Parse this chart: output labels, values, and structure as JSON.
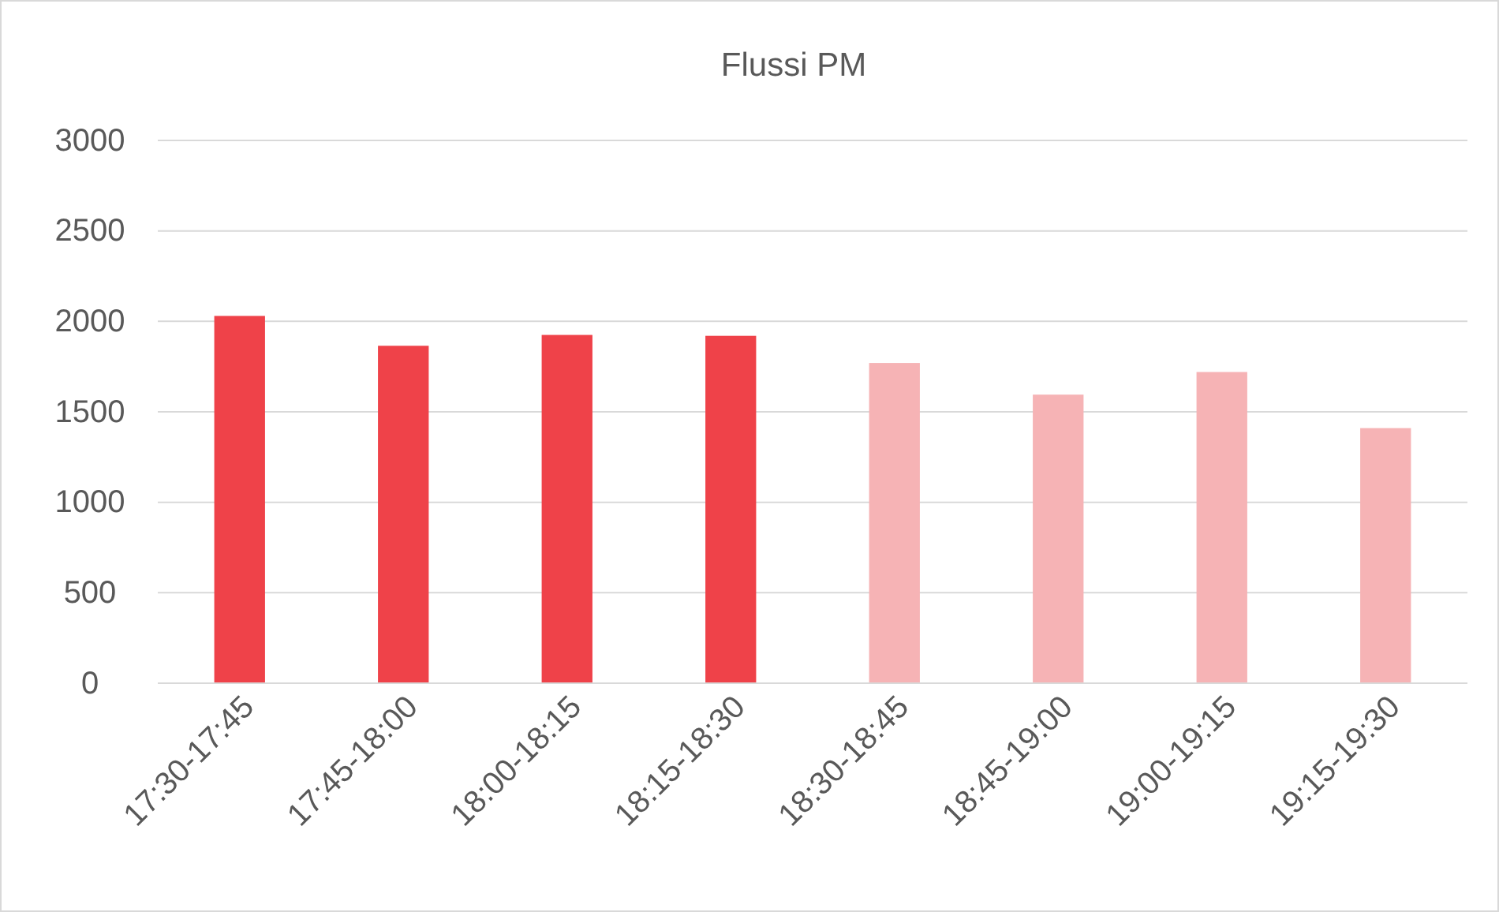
{
  "chart_data": {
    "type": "bar",
    "title": "Flussi PM",
    "categories": [
      "17:30-17:45",
      "17:45-18:00",
      "18:00-18:15",
      "18:15-18:30",
      "18:30-18:45",
      "18:45-19:00",
      "19:00-19:15",
      "19:15-19:30"
    ],
    "values": [
      2030,
      1865,
      1925,
      1920,
      1770,
      1595,
      1720,
      1410
    ],
    "colors": [
      "#ef4249",
      "#ef4249",
      "#ef4249",
      "#ef4249",
      "#f6b3b5",
      "#f6b3b5",
      "#f6b3b5",
      "#f6b3b5"
    ],
    "ylim": [
      0,
      3000
    ],
    "yticks": [
      0,
      500,
      1000,
      1500,
      2000,
      2500,
      3000
    ],
    "grid": "y"
  }
}
